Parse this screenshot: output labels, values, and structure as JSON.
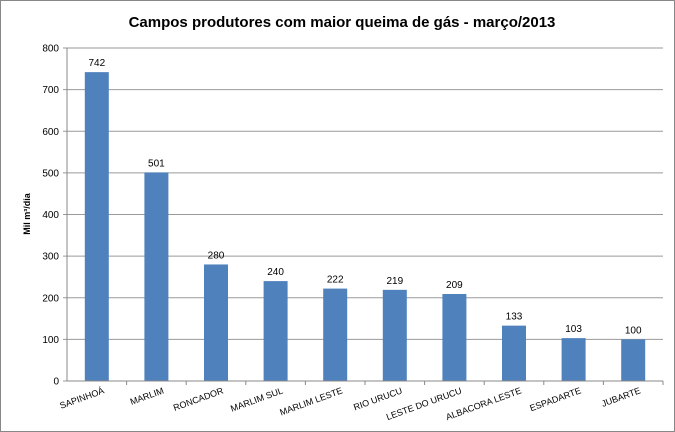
{
  "chart_data": {
    "type": "bar",
    "title": "Campos produtores com maior queima de gás -  março/2013",
    "y_label": "Mil m³/dia",
    "categories": [
      "SAPINHOÁ",
      "MARLIM",
      "RONCADOR",
      "MARLIM SUL",
      "MARLIM LESTE",
      "RIO URUCU",
      "LESTE DO URUCU",
      "ALBACORA LESTE",
      "ESPADARTE",
      "JUBARTE"
    ],
    "values": [
      742,
      501,
      280,
      240,
      222,
      219,
      209,
      133,
      103,
      100
    ],
    "color": "#4f81bd",
    "ylim": [
      0,
      800
    ],
    "yticks": [
      0,
      100,
      200,
      300,
      400,
      500,
      600,
      700,
      800
    ],
    "grid": true
  }
}
